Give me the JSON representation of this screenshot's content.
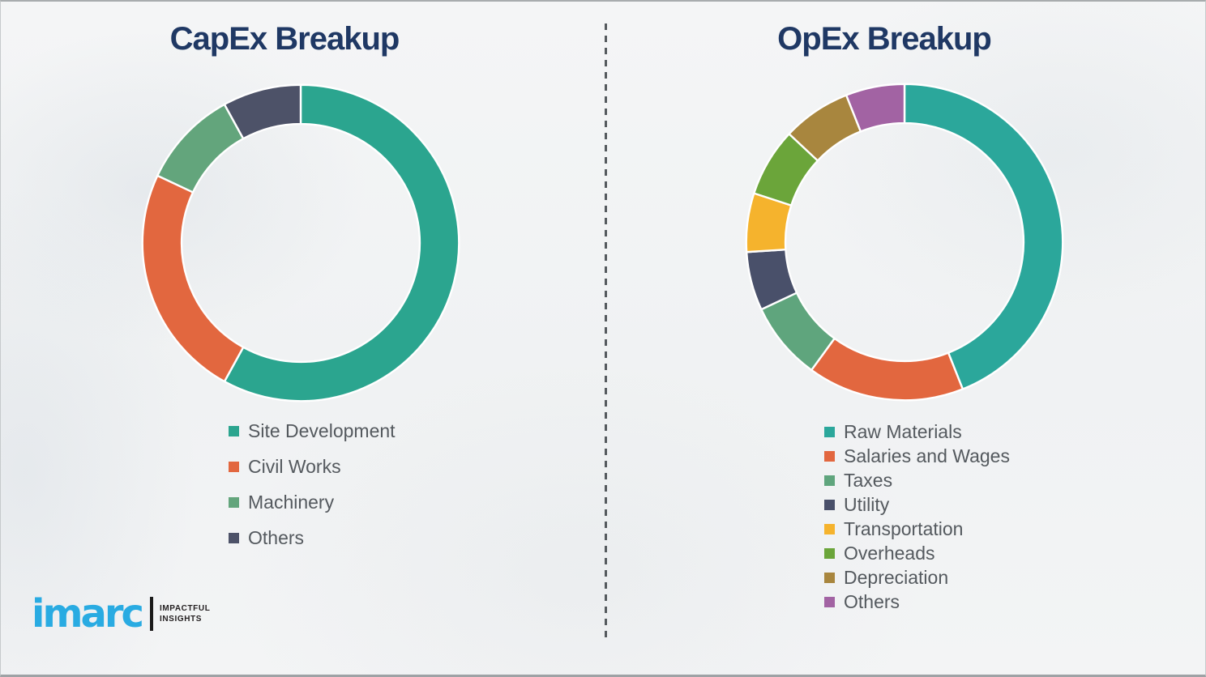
{
  "chart_data": [
    {
      "type": "pie",
      "variant": "donut",
      "title": "CapEx Breakup",
      "labels": [
        "Site Development",
        "Civil Works",
        "Machinery",
        "Others"
      ],
      "values": [
        58,
        24,
        10,
        8
      ],
      "unit": "percent",
      "colors": [
        "#2BA58F",
        "#E2673F",
        "#63A57C",
        "#4D5268"
      ],
      "start_angle_deg": 0,
      "direction": "clockwise",
      "inner_radius_ratio": 0.75,
      "legend_position": "below-left",
      "data_labels_shown": false
    },
    {
      "type": "pie",
      "variant": "donut",
      "title": "OpEx Breakup",
      "labels": [
        "Raw Materials",
        "Salaries and Wages",
        "Taxes",
        "Utility",
        "Transportation",
        "Overheads",
        "Depreciation",
        "Others"
      ],
      "values": [
        44,
        16,
        8,
        6,
        6,
        7,
        7,
        6
      ],
      "unit": "percent",
      "colors": [
        "#2BA79B",
        "#E2673F",
        "#5FA57D",
        "#49506A",
        "#F5B32D",
        "#6BA53A",
        "#A8863E",
        "#A263A3"
      ],
      "start_angle_deg": 0,
      "direction": "clockwise",
      "inner_radius_ratio": 0.75,
      "legend_position": "below-left",
      "data_labels_shown": false
    }
  ],
  "branding": {
    "logo_text": "imarc",
    "tagline_line1": "IMPACTFUL",
    "tagline_line2": "INSIGHTS",
    "logo_color": "#29ABE2"
  },
  "styles": {
    "title_color": "#1F3864",
    "legend_text_color": "#54595E",
    "separator_color": "#555A5E",
    "segment_gap_color": "#FFFFFF"
  }
}
